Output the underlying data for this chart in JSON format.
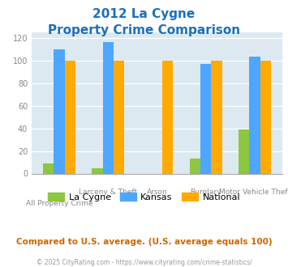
{
  "title_line1": "2012 La Cygne",
  "title_line2": "Property Crime Comparison",
  "title_color": "#1a6fba",
  "categories": [
    "All Property Crime",
    "Larceny & Theft",
    "Arson",
    "Burglary",
    "Motor Vehicle Theft"
  ],
  "la_cygne": [
    9,
    5,
    0,
    13,
    39
  ],
  "kansas": [
    110,
    116,
    0,
    97,
    103
  ],
  "national": [
    100,
    100,
    100,
    100,
    100
  ],
  "la_cygne_color": "#8dc63f",
  "kansas_color": "#4da6ff",
  "national_color": "#ffaa00",
  "ylim": [
    0,
    125
  ],
  "yticks": [
    0,
    20,
    40,
    60,
    80,
    100,
    120
  ],
  "plot_bg": "#dce9f0",
  "footer_text": "Compared to U.S. average. (U.S. average equals 100)",
  "footer_color": "#cc6600",
  "credit_text": "© 2025 CityRating.com - https://www.cityrating.com/crime-statistics/",
  "credit_color": "#999999",
  "legend_labels": [
    "La Cygne",
    "Kansas",
    "National"
  ],
  "top_xlabels": [
    "",
    "Larceny & Theft",
    "Arson",
    "Burglary",
    "Motor Vehicle Theft"
  ],
  "bot_xlabels": [
    "All Property Crime",
    "",
    "",
    "",
    ""
  ]
}
